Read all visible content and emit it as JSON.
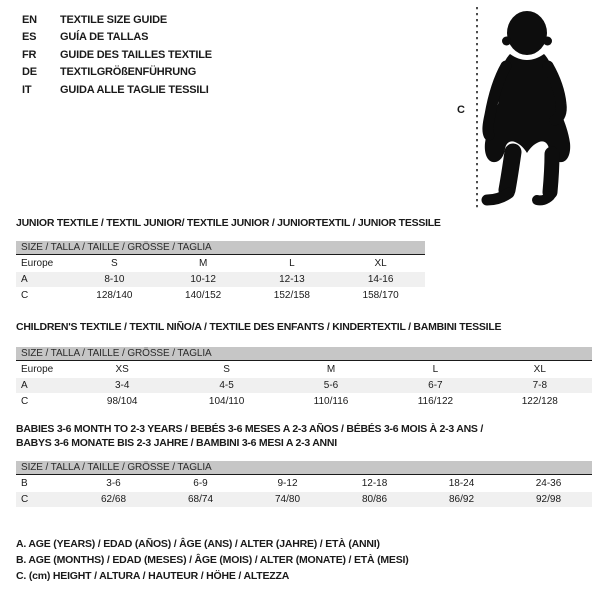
{
  "languages": [
    {
      "code": "EN",
      "title": "TEXTILE SIZE GUIDE"
    },
    {
      "code": "ES",
      "title": "GUÍA DE TALLAS"
    },
    {
      "code": "FR",
      "title": "GUIDE DES TAILLES TEXTILE"
    },
    {
      "code": "DE",
      "title": "TEXTILGRÖßENFÜHRUNG"
    },
    {
      "code": "IT",
      "title": "GUIDA ALLE TAGLIE TESSILI"
    }
  ],
  "figure": {
    "label": "C"
  },
  "tables": [
    {
      "title_lines": [
        "JUNIOR TEXTILE / TEXTIL JUNIOR/ TEXTILE JUNIOR / JUNIORTEXTIL / JUNIOR TESSILE"
      ],
      "size_header": "SIZE / TALLA / TAILLE / GRÖSSE / TAGLIA",
      "rows": [
        {
          "label": "Europe",
          "cells": [
            "S",
            "M",
            "L",
            "XL"
          ]
        },
        {
          "label": "A",
          "cells": [
            "8-10",
            "10-12",
            "12-13",
            "14-16"
          ]
        },
        {
          "label": "C",
          "cells": [
            "128/140",
            "140/152",
            "152/158",
            "158/170"
          ]
        }
      ]
    },
    {
      "title_lines": [
        "CHILDREN'S TEXTILE / TEXTIL NIÑO/A / TEXTILE DES ENFANTS / KINDERTEXTIL / BAMBINI TESSILE"
      ],
      "size_header": "SIZE / TALLA / TAILLE / GRÖSSE / TAGLIA",
      "rows": [
        {
          "label": "Europe",
          "cells": [
            "XS",
            "S",
            "M",
            "L",
            "XL"
          ]
        },
        {
          "label": "A",
          "cells": [
            "3-4",
            "4-5",
            "5-6",
            "6-7",
            "7-8"
          ]
        },
        {
          "label": "C",
          "cells": [
            "98/104",
            "104/110",
            "110/116",
            "116/122",
            "122/128"
          ]
        }
      ]
    },
    {
      "title_lines": [
        "BABIES 3-6 MONTH TO 2-3 YEARS / BEBÉS 3-6 MESES A 2-3 AÑOS / BÉBÉS 3-6 MOIS À 2-3 ANS /",
        "BABYS 3-6 MONATE BIS 2-3 JAHRE / BAMBINI 3-6 MESI A 2-3 ANNI"
      ],
      "size_header": "SIZE / TALLA / TAILLE / GRÖSSE / TAGLIA",
      "rows": [
        {
          "label": "B",
          "cells": [
            "3-6",
            "6-9",
            "9-12",
            "12-18",
            "18-24",
            "24-36"
          ]
        },
        {
          "label": "C",
          "cells": [
            "62/68",
            "68/74",
            "74/80",
            "80/86",
            "86/92",
            "92/98"
          ]
        }
      ]
    }
  ],
  "footnotes": [
    "A. AGE (YEARS) / EDAD (AÑOS) / ÂGE (ANS) / ALTER (JAHRE) / ETÀ (ANNI)",
    "B. AGE (MONTHS) / EDAD (MESES) / ÂGE (MOIS) / ALTER (MONATE) / ETÀ (MESI)",
    "C. (cm) HEIGHT / ALTURA / HAUTEUR / HÖHE / ALTEZZA"
  ],
  "colors": {
    "header_bar": "#c6c6c6",
    "row_band": "#f0f0f0",
    "silhouette": "#0d0d0d",
    "text": "#1a1a1a"
  }
}
